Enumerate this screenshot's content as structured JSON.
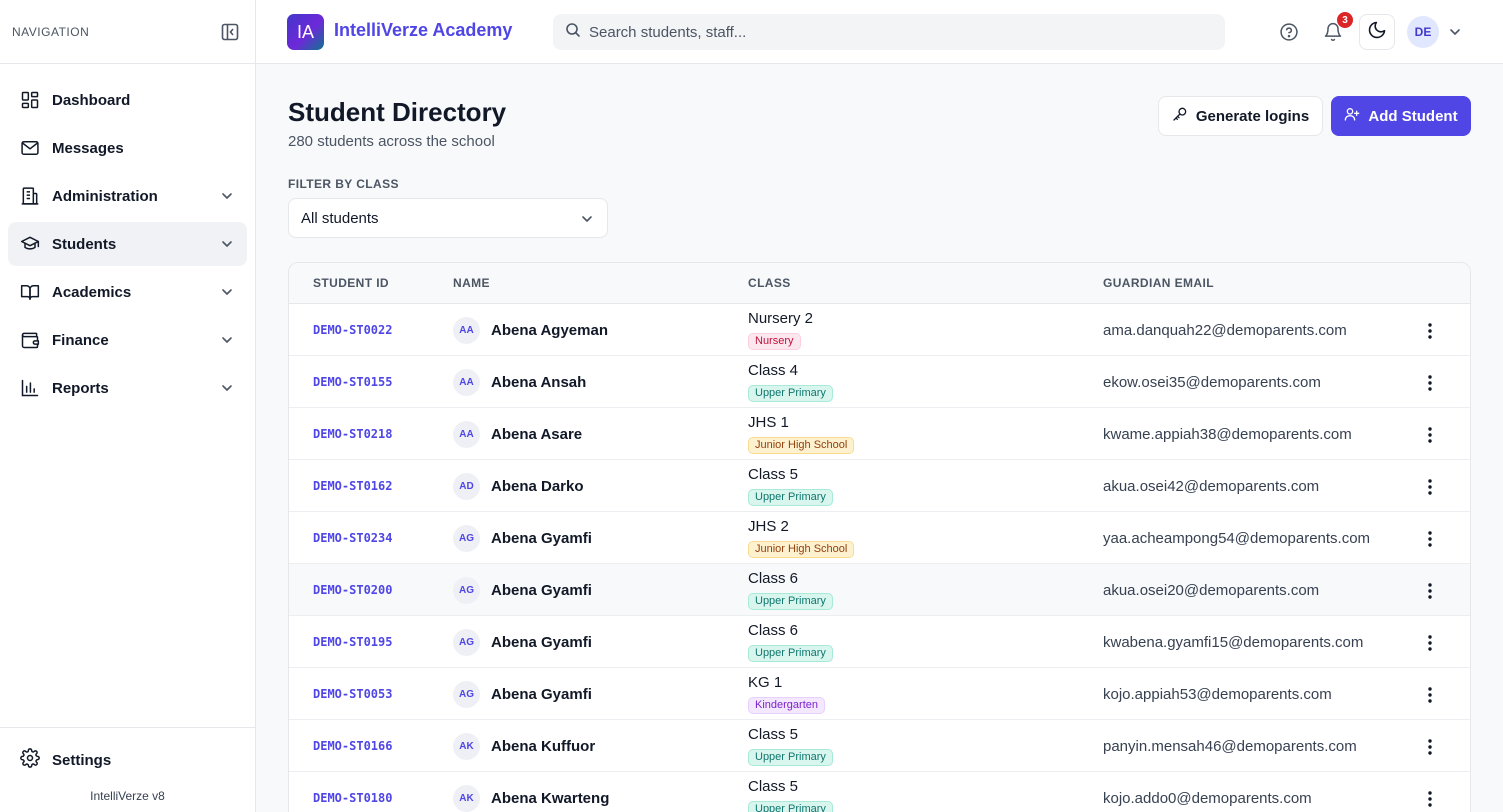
{
  "sidebar": {
    "nav_label": "NAVIGATION",
    "items": [
      {
        "label": "Dashboard",
        "icon": "dashboard-icon",
        "has_chevron": false
      },
      {
        "label": "Messages",
        "icon": "mail-icon",
        "has_chevron": false
      },
      {
        "label": "Administration",
        "icon": "building-icon",
        "has_chevron": true
      },
      {
        "label": "Students",
        "icon": "graduation-cap-icon",
        "has_chevron": true,
        "active": true
      },
      {
        "label": "Academics",
        "icon": "book-icon",
        "has_chevron": true
      },
      {
        "label": "Finance",
        "icon": "wallet-icon",
        "has_chevron": true
      },
      {
        "label": "Reports",
        "icon": "bar-chart-icon",
        "has_chevron": true
      }
    ],
    "settings_label": "Settings",
    "version": "IntelliVerze v8"
  },
  "topbar": {
    "logo_text": "IA",
    "brand": "IntelliVerze Academy",
    "search_placeholder": "Search students, staff...",
    "notification_count": "3",
    "avatar_initials": "DE"
  },
  "page": {
    "title": "Student Directory",
    "subtitle": "280 students across the school",
    "generate_logins_label": "Generate logins",
    "add_student_label": "Add Student",
    "filter_label": "FILTER BY CLASS",
    "filter_value": "All students"
  },
  "colors": {
    "accent": "#4f46e5",
    "badge_red": "#dc2626"
  },
  "table": {
    "headers": [
      "STUDENT ID",
      "NAME",
      "CLASS",
      "GUARDIAN EMAIL"
    ],
    "rows": [
      {
        "id": "DEMO-ST0022",
        "initials": "AA",
        "name": "Abena Agyeman",
        "class": "Nursery 2",
        "tag": "Nursery",
        "tag_type": "nursery",
        "email": "ama.danquah22@demoparents.com"
      },
      {
        "id": "DEMO-ST0155",
        "initials": "AA",
        "name": "Abena Ansah",
        "class": "Class 4",
        "tag": "Upper Primary",
        "tag_type": "upper",
        "email": "ekow.osei35@demoparents.com"
      },
      {
        "id": "DEMO-ST0218",
        "initials": "AA",
        "name": "Abena Asare",
        "class": "JHS 1",
        "tag": "Junior High School",
        "tag_type": "jhs",
        "email": "kwame.appiah38@demoparents.com"
      },
      {
        "id": "DEMO-ST0162",
        "initials": "AD",
        "name": "Abena Darko",
        "class": "Class 5",
        "tag": "Upper Primary",
        "tag_type": "upper",
        "email": "akua.osei42@demoparents.com"
      },
      {
        "id": "DEMO-ST0234",
        "initials": "AG",
        "name": "Abena Gyamfi",
        "class": "JHS 2",
        "tag": "Junior High School",
        "tag_type": "jhs",
        "email": "yaa.acheampong54@demoparents.com"
      },
      {
        "id": "DEMO-ST0200",
        "initials": "AG",
        "name": "Abena Gyamfi",
        "class": "Class 6",
        "tag": "Upper Primary",
        "tag_type": "upper",
        "email": "akua.osei20@demoparents.com",
        "highlighted": true
      },
      {
        "id": "DEMO-ST0195",
        "initials": "AG",
        "name": "Abena Gyamfi",
        "class": "Class 6",
        "tag": "Upper Primary",
        "tag_type": "upper",
        "email": "kwabena.gyamfi15@demoparents.com"
      },
      {
        "id": "DEMO-ST0053",
        "initials": "AG",
        "name": "Abena Gyamfi",
        "class": "KG 1",
        "tag": "Kindergarten",
        "tag_type": "kg",
        "email": "kojo.appiah53@demoparents.com"
      },
      {
        "id": "DEMO-ST0166",
        "initials": "AK",
        "name": "Abena Kuffuor",
        "class": "Class 5",
        "tag": "Upper Primary",
        "tag_type": "upper",
        "email": "panyin.mensah46@demoparents.com"
      },
      {
        "id": "DEMO-ST0180",
        "initials": "AK",
        "name": "Abena Kwarteng",
        "class": "Class 5",
        "tag": "Upper Primary",
        "tag_type": "upper",
        "email": "kojo.addo0@demoparents.com"
      }
    ]
  }
}
